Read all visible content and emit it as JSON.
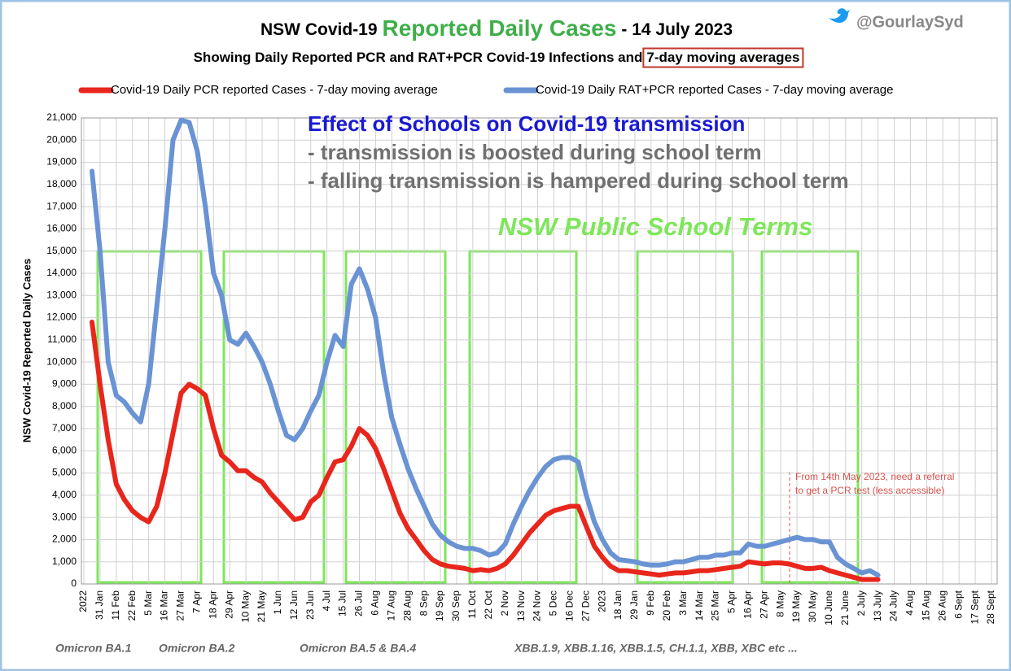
{
  "handle": "@GourlaySyd",
  "chart_data": {
    "type": "line",
    "title": "NSW Covid-19",
    "title_highlight": "Reported Daily Cases",
    "title_date": "- 14 July 2023",
    "subtitle": "Showing Daily Reported PCR and RAT+PCR Covid-19 Infections and",
    "subtitle_boxed": "7-day moving averages",
    "y_label": "NSW Covid-19 Reported Daily Cases",
    "annotations": [
      "Effect of Schools on Covid-19 transmission",
      "- transmission is boosted during school term",
      "- falling transmission is hampered during school term",
      "NSW Public School Terms",
      "From 14th May 2023, need a referral",
      "to get a PCR test (less accessible)"
    ],
    "variants": [
      "Omicron BA.1",
      "Omicron BA.2",
      "Omicron BA.5 & BA.4",
      "XBB.1.9, XBB.1.16, XBB.1.5, CH.1.1, XBB, XBC  etc ..."
    ],
    "grid": true,
    "ylim": [
      0,
      21000
    ],
    "yticks": [
      0,
      {
        "value": 1000,
        "label": "1,000"
      },
      {
        "value": 2000,
        "label": "2,000"
      },
      {
        "value": 3000,
        "label": "3,000"
      },
      {
        "value": 4000,
        "label": "4,000"
      },
      {
        "value": 5000,
        "label": "5,000"
      },
      {
        "value": 6000,
        "label": "6,000"
      },
      {
        "value": 7000,
        "label": "7,000"
      },
      {
        "value": 8000,
        "label": "8,000"
      },
      {
        "value": 9000,
        "label": "9,000"
      },
      {
        "value": 10000,
        "label": "10,000"
      },
      {
        "value": 11000,
        "label": "11,000"
      },
      {
        "value": 12000,
        "label": "12,000"
      },
      {
        "value": 13000,
        "label": "13,000"
      },
      {
        "value": 14000,
        "label": "14,000"
      },
      {
        "value": 15000,
        "label": "15,000"
      },
      {
        "value": 16000,
        "label": "16,000"
      },
      {
        "value": 17000,
        "label": "17,000"
      },
      {
        "value": 18000,
        "label": "18,000"
      },
      {
        "value": 19000,
        "label": "19,000"
      },
      {
        "value": 20000,
        "label": "20,000"
      },
      {
        "value": 21000,
        "label": "21,000"
      }
    ],
    "categories": [
      "2022",
      null,
      "31 Jan",
      null,
      "11 Feb",
      null,
      "22 Feb",
      null,
      "5 Mar",
      null,
      "16 Mar",
      null,
      "27 Mar",
      null,
      "7 Apr",
      null,
      "18 Apr",
      null,
      "29 Apr",
      null,
      "10 May",
      null,
      "21 May",
      null,
      "1 Jun",
      null,
      "12 Jun",
      null,
      "23 Jun",
      null,
      "4 Jul",
      null,
      "15 Jul",
      null,
      "26 Jul",
      null,
      "6 Aug",
      null,
      "17 Aug",
      null,
      "28 Aug",
      null,
      "8 Sep",
      null,
      "19 Sep",
      null,
      "30 Sep",
      null,
      "11 Oct",
      null,
      "22 Oct",
      null,
      "2 Nov",
      null,
      "13 Nov",
      null,
      "24 Nov",
      null,
      "5 Dec",
      null,
      "16 Dec",
      null,
      "27 Dec",
      null,
      "2023",
      null,
      "18 Jan",
      null,
      "29 Jan",
      null,
      "9 Feb",
      null,
      "20 Feb",
      null,
      "3 Mar",
      null,
      "14 Mar",
      null,
      "25 Mar",
      null,
      "5 Apr",
      null,
      "16 Apr",
      null,
      "27 Apr",
      null,
      "8 May",
      null,
      "19 May",
      null,
      "30 May",
      null,
      "10 June",
      null,
      "21 June",
      null,
      "2 July",
      null,
      "13 July",
      null,
      "24 July",
      null,
      "4 Aug",
      null,
      "15 Aug",
      null,
      "26 Aug",
      null,
      "6 Sept",
      null,
      "17 Sept",
      null,
      "28 Sept"
    ],
    "series": [
      {
        "name": "Covid-19 Daily PCR reported Cases - 7-day moving average",
        "color": "#e8261c",
        "values": [
          null,
          11800,
          9000,
          6500,
          4500,
          3800,
          3300,
          3000,
          2800,
          3500,
          5000,
          6800,
          8600,
          9000,
          8800,
          8500,
          7000,
          5800,
          5500,
          5100,
          5100,
          4800,
          4600,
          4100,
          3700,
          3300,
          2900,
          3000,
          3700,
          4000,
          4800,
          5500,
          5600,
          6200,
          7000,
          6700,
          6100,
          5200,
          4200,
          3200,
          2500,
          2000,
          1500,
          1100,
          900,
          800,
          750,
          700,
          600,
          650,
          600,
          700,
          900,
          1300,
          1800,
          2300,
          2700,
          3100,
          3300,
          3400,
          3500,
          3500,
          2600,
          1700,
          1200,
          800,
          600,
          600,
          550,
          500,
          450,
          400,
          450,
          500,
          500,
          550,
          600,
          600,
          650,
          700,
          750,
          800,
          1000,
          950,
          900,
          950,
          950,
          900,
          800,
          700,
          700,
          750,
          600,
          500,
          400,
          300,
          200,
          200,
          200,
          null,
          null,
          null,
          null,
          null,
          null,
          null,
          null,
          null,
          null,
          null,
          null,
          null,
          null
        ]
      },
      {
        "name": "Covid-19 Daily RAT+PCR reported Cases - 7-day moving average",
        "color": "#6a93d4",
        "values": [
          null,
          18600,
          15000,
          10000,
          8500,
          8200,
          7700,
          7300,
          9000,
          12500,
          16000,
          20000,
          20900,
          20800,
          19500,
          17000,
          14000,
          13000,
          11000,
          10800,
          11300,
          10700,
          10000,
          9000,
          7800,
          6700,
          6500,
          7000,
          7800,
          8500,
          10000,
          11200,
          10700,
          13500,
          14200,
          13300,
          12000,
          9500,
          7500,
          6300,
          5200,
          4300,
          3500,
          2700,
          2200,
          1900,
          1700,
          1600,
          1600,
          1500,
          1300,
          1400,
          1800,
          2700,
          3500,
          4200,
          4800,
          5300,
          5600,
          5700,
          5700,
          5500,
          4000,
          2800,
          2000,
          1400,
          1100,
          1050,
          1000,
          900,
          850,
          850,
          900,
          1000,
          1000,
          1100,
          1200,
          1200,
          1300,
          1300,
          1400,
          1400,
          1800,
          1700,
          1700,
          1800,
          1900,
          2000,
          2100,
          2000,
          2000,
          1900,
          1900,
          1200,
          900,
          700,
          500,
          600,
          400,
          null,
          null,
          null,
          null,
          null,
          null,
          null,
          null,
          null,
          null,
          null,
          null,
          null,
          null
        ]
      }
    ]
  }
}
